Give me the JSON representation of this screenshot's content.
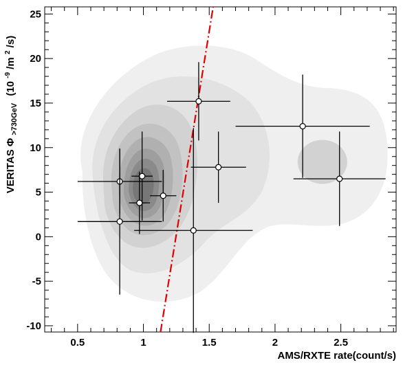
{
  "chart_data": {
    "type": "scatter",
    "xlabel": "AMS/RXTE rate(count/s)",
    "ylabel_main": "VERITAS Φ",
    "ylabel_sub": ">730GeV",
    "ylabel_units_pre": "(10",
    "ylabel_units_exp1": "-9",
    "ylabel_units_mid": "/m",
    "ylabel_units_exp2": "2",
    "ylabel_units_post": "/s)",
    "xlim": [
      0.25,
      2.92
    ],
    "ylim": [
      -10.7,
      25.8
    ],
    "xticks": [
      0.5,
      1,
      1.5,
      2,
      2.5
    ],
    "xtick_labels": [
      "0.5",
      "1",
      "1.5",
      "2",
      "2.5"
    ],
    "yticks": [
      -10,
      -5,
      0,
      5,
      10,
      15,
      20,
      25
    ],
    "ytick_labels": [
      "-10",
      "-5",
      "0",
      "5",
      "10",
      "15",
      "20",
      "25"
    ],
    "grid": false,
    "points": [
      {
        "x": 0.82,
        "y": 6.2,
        "xerr": 0.32,
        "yerr": 3.6
      },
      {
        "x": 0.99,
        "y": 6.8,
        "xerr": 0.08,
        "yerr": 5.0
      },
      {
        "x": 0.97,
        "y": 3.8,
        "xerr": 0.08,
        "yerr": 3.5
      },
      {
        "x": 1.15,
        "y": 4.6,
        "xerr": 0.1,
        "yerr": 2.9
      },
      {
        "x": 0.82,
        "y": 1.7,
        "xerr": 0.32,
        "yerr": 8.2
      },
      {
        "x": 1.42,
        "y": 15.2,
        "xerr": 0.24,
        "yerr": 4.4
      },
      {
        "x": 1.57,
        "y": 7.8,
        "xerr": 0.21,
        "yerr": 4.0
      },
      {
        "x": 1.38,
        "y": 0.7,
        "xerr": 0.45,
        "yerr": 11.5
      },
      {
        "x": 2.21,
        "y": 12.4,
        "xerr": 0.51,
        "yerr": 5.8
      },
      {
        "x": 2.49,
        "y": 6.5,
        "xerr": 0.35,
        "yerr": 5.3
      }
    ],
    "fit_line": {
      "x1": 1.13,
      "y1": -10.7,
      "x2": 1.53,
      "y2": 25.8,
      "color": "#e00000",
      "style": "dash-dot"
    },
    "density_contour_fills": [
      "#efefef",
      "#e2e2e2",
      "#d2d2d2",
      "#c2c2c2",
      "#b0b0b0",
      "#9e9e9e",
      "#8a8a8a",
      "#777777"
    ]
  }
}
